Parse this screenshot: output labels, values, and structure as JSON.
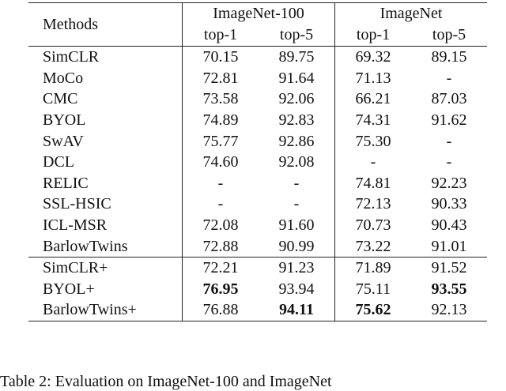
{
  "table": {
    "header": {
      "methods": "Methods",
      "groups": [
        "ImageNet-100",
        "ImageNet"
      ],
      "subcols": [
        "top-1",
        "top-5",
        "top-1",
        "top-5"
      ]
    },
    "rows": [
      {
        "method": "SimCLR",
        "values": [
          "70.15",
          "89.75",
          "69.32",
          "89.15"
        ]
      },
      {
        "method": "MoCo",
        "values": [
          "72.81",
          "91.64",
          "71.13",
          "-"
        ]
      },
      {
        "method": "CMC",
        "values": [
          "73.58",
          "92.06",
          "66.21",
          "87.03"
        ]
      },
      {
        "method": "BYOL",
        "values": [
          "74.89",
          "92.83",
          "74.31",
          "91.62"
        ]
      },
      {
        "method": "SwAV",
        "values": [
          "75.77",
          "92.86",
          "75.30",
          "-"
        ]
      },
      {
        "method": "DCL",
        "values": [
          "74.60",
          "92.08",
          "-",
          "-"
        ]
      },
      {
        "method": "RELIC",
        "values": [
          "-",
          "-",
          "74.81",
          "92.23"
        ]
      },
      {
        "method": "SSL-HSIC",
        "values": [
          "-",
          "-",
          "72.13",
          "90.33"
        ]
      },
      {
        "method": "ICL-MSR",
        "values": [
          "72.08",
          "91.60",
          "70.73",
          "90.43"
        ]
      },
      {
        "method": "BarlowTwins",
        "values": [
          "72.88",
          "90.99",
          "73.22",
          "91.01"
        ]
      },
      {
        "method": "SimCLR+",
        "values": [
          "72.21",
          "91.23",
          "71.89",
          "91.52"
        ]
      },
      {
        "method": "BYOL+",
        "values": [
          "76.95",
          "93.94",
          "75.11",
          "93.55"
        ],
        "bold": [
          0,
          3
        ]
      },
      {
        "method": "BarlowTwins+",
        "values": [
          "76.88",
          "94.11",
          "75.62",
          "92.13"
        ],
        "bold": [
          1,
          2
        ]
      }
    ]
  },
  "caption": "Table 2: Evaluation on ImageNet-100 and ImageNet"
}
